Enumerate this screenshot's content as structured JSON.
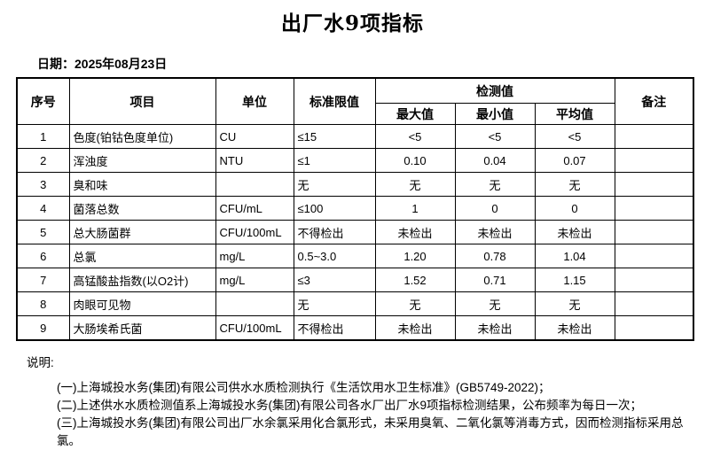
{
  "title": "出厂水9项指标",
  "date_line": "日期：2025年08月23日",
  "table": {
    "headers": {
      "no": "序号",
      "item": "项目",
      "unit": "单位",
      "limit": "标准限值",
      "detection": "检测值",
      "max": "最大值",
      "min": "最小值",
      "avg": "平均值",
      "remark": "备注"
    },
    "rows": [
      {
        "no": "1",
        "item": "色度(铂钴色度单位)",
        "unit": "CU",
        "limit": "≤15",
        "max": "<5",
        "min": "<5",
        "avg": "<5",
        "remark": ""
      },
      {
        "no": "2",
        "item": "浑浊度",
        "unit": "NTU",
        "limit": "≤1",
        "max": "0.10",
        "min": "0.04",
        "avg": "0.07",
        "remark": ""
      },
      {
        "no": "3",
        "item": "臭和味",
        "unit": "",
        "limit": "无",
        "max": "无",
        "min": "无",
        "avg": "无",
        "remark": ""
      },
      {
        "no": "4",
        "item": "菌落总数",
        "unit": "CFU/mL",
        "limit": "≤100",
        "max": "1",
        "min": "0",
        "avg": "0",
        "remark": ""
      },
      {
        "no": "5",
        "item": "总大肠菌群",
        "unit": "CFU/100mL",
        "limit": "不得检出",
        "max": "未检出",
        "min": "未检出",
        "avg": "未检出",
        "remark": ""
      },
      {
        "no": "6",
        "item": "总氯",
        "unit": "mg/L",
        "limit": "0.5~3.0",
        "max": "1.20",
        "min": "0.78",
        "avg": "1.04",
        "remark": ""
      },
      {
        "no": "7",
        "item": "高锰酸盐指数(以O2计)",
        "unit": "mg/L",
        "limit": "≤3",
        "max": "1.52",
        "min": "0.71",
        "avg": "1.15",
        "remark": ""
      },
      {
        "no": "8",
        "item": "肉眼可见物",
        "unit": "",
        "limit": "无",
        "max": "无",
        "min": "无",
        "avg": "无",
        "remark": ""
      },
      {
        "no": "9",
        "item": "大肠埃希氏菌",
        "unit": "CFU/100mL",
        "limit": "不得检出",
        "max": "未检出",
        "min": "未检出",
        "avg": "未检出",
        "remark": ""
      }
    ]
  },
  "notes": {
    "heading": "说明:",
    "items": [
      "(一)上海城投水务(集团)有限公司供水水质检测执行《生活饮用水卫生标准》(GB5749-2022)；",
      "(二)上述供水水质检测值系上海城投水务(集团)有限公司各水厂出厂水9项指标检测结果，公布频率为每日一次；",
      "(三)上海城投水务(集团)有限公司出厂水余氯采用化合氯形式，未采用臭氧、二氧化氯等消毒方式，因而检测指标采用总氯。"
    ]
  }
}
